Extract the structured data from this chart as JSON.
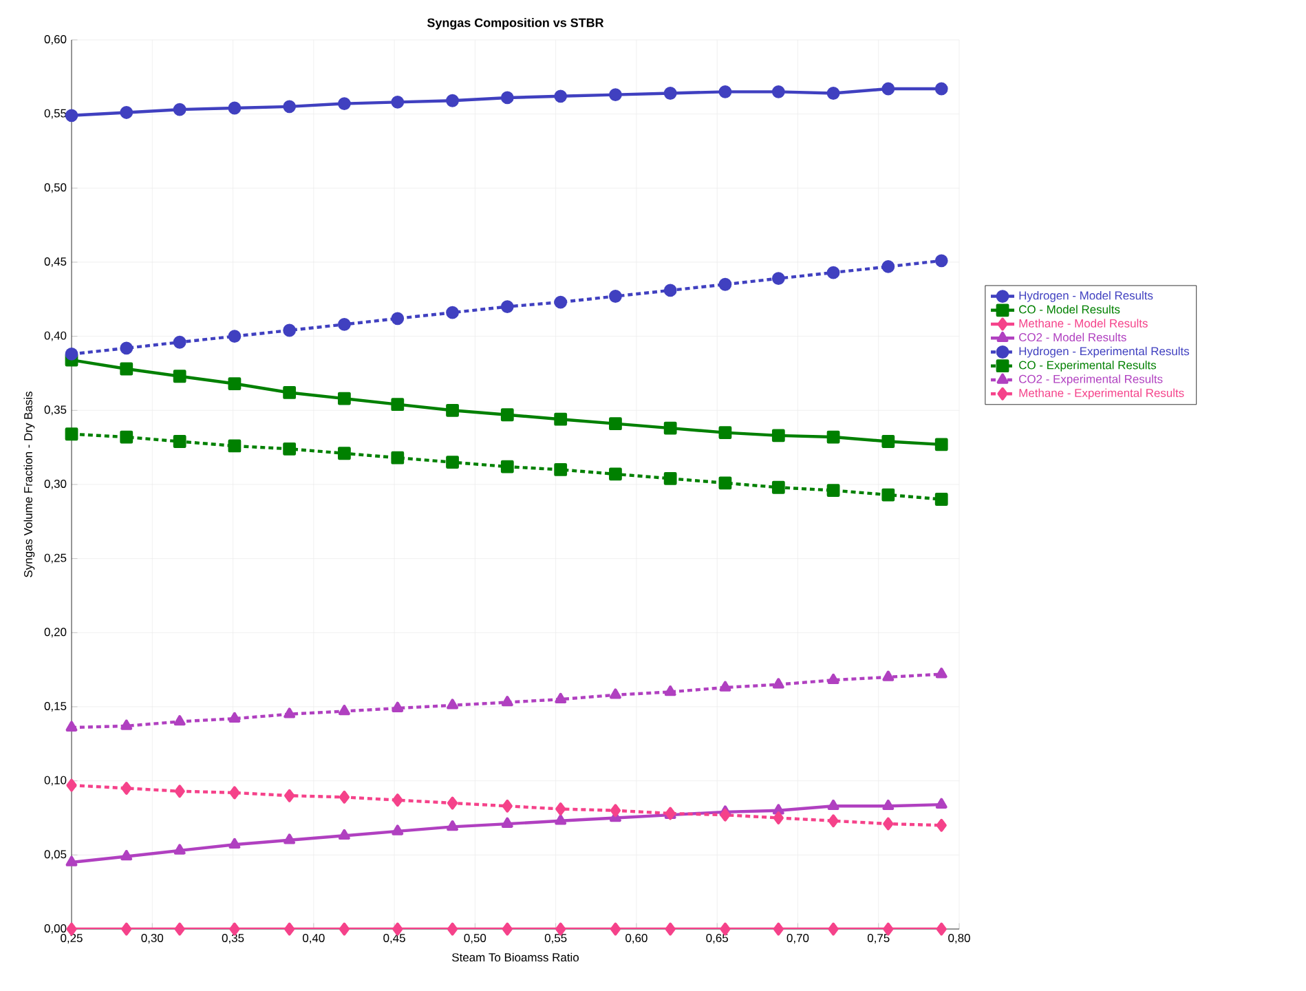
{
  "chart_data": {
    "type": "line",
    "title": "Syngas Composition vs STBR",
    "xlabel": "Steam To Bioamss Ratio",
    "ylabel": "Syngas Volume Fraction - Dry Basis",
    "x": [
      0.25,
      0.284,
      0.317,
      0.351,
      0.385,
      0.419,
      0.452,
      0.486,
      0.52,
      0.553,
      0.587,
      0.621,
      0.655,
      0.688,
      0.722,
      0.756,
      0.789
    ],
    "series": [
      {
        "name": "Hydrogen - Model Results",
        "color": "#4040c0",
        "marker": "circle",
        "line_style": "solid",
        "values": [
          0.549,
          0.551,
          0.553,
          0.554,
          0.555,
          0.557,
          0.558,
          0.559,
          0.561,
          0.562,
          0.563,
          0.564,
          0.565,
          0.565,
          0.564,
          0.567,
          0.567
        ]
      },
      {
        "name": "CO - Model Results",
        "color": "#008000",
        "marker": "square",
        "line_style": "solid",
        "values": [
          0.384,
          0.378,
          0.373,
          0.368,
          0.362,
          0.358,
          0.354,
          0.35,
          0.347,
          0.344,
          0.341,
          0.338,
          0.335,
          0.333,
          0.332,
          0.329,
          0.327
        ]
      },
      {
        "name": "Methane - Model Results",
        "color": "#f5428a",
        "marker": "diamond",
        "line_style": "solid",
        "values": [
          0,
          0,
          0,
          0,
          0,
          0,
          0,
          0,
          0,
          0,
          0,
          0,
          0,
          0,
          0,
          0,
          0
        ]
      },
      {
        "name": "CO2 - Model Results",
        "color": "#b040c0",
        "marker": "triangle",
        "line_style": "solid",
        "values": [
          0.045,
          0.049,
          0.053,
          0.057,
          0.06,
          0.063,
          0.066,
          0.069,
          0.071,
          0.073,
          0.075,
          0.077,
          0.079,
          0.08,
          0.083,
          0.083,
          0.084
        ]
      },
      {
        "name": "Hydrogen - Experimental Results",
        "color": "#4040c0",
        "marker": "circle",
        "line_style": "dotted",
        "values": [
          0.388,
          0.392,
          0.396,
          0.4,
          0.404,
          0.408,
          0.412,
          0.416,
          0.42,
          0.423,
          0.427,
          0.431,
          0.435,
          0.439,
          0.443,
          0.447,
          0.451
        ]
      },
      {
        "name": "CO - Experimental Results",
        "color": "#008000",
        "marker": "square",
        "line_style": "dotted",
        "values": [
          0.334,
          0.332,
          0.329,
          0.326,
          0.324,
          0.321,
          0.318,
          0.315,
          0.312,
          0.31,
          0.307,
          0.304,
          0.301,
          0.298,
          0.296,
          0.293,
          0.29
        ]
      },
      {
        "name": "CO2 - Experimental Results",
        "color": "#b040c0",
        "marker": "triangle",
        "line_style": "dotted",
        "values": [
          0.136,
          0.137,
          0.14,
          0.142,
          0.145,
          0.147,
          0.149,
          0.151,
          0.153,
          0.155,
          0.158,
          0.16,
          0.163,
          0.165,
          0.168,
          0.17,
          0.172
        ]
      },
      {
        "name": "Methane - Experimental Results",
        "color": "#f5428a",
        "marker": "diamond",
        "line_style": "dotted",
        "values": [
          0.097,
          0.095,
          0.093,
          0.092,
          0.09,
          0.089,
          0.087,
          0.085,
          0.083,
          0.081,
          0.08,
          0.078,
          0.077,
          0.075,
          0.073,
          0.071,
          0.07
        ]
      }
    ],
    "xlim": [
      0.25,
      0.8
    ],
    "ylim": [
      0,
      0.6
    ],
    "xticks": [
      {
        "value": 0.25,
        "label": "0,25"
      },
      {
        "value": 0.3,
        "label": "0,30"
      },
      {
        "value": 0.35,
        "label": "0,35"
      },
      {
        "value": 0.4,
        "label": "0,40"
      },
      {
        "value": 0.45,
        "label": "0,45"
      },
      {
        "value": 0.5,
        "label": "0,50"
      },
      {
        "value": 0.55,
        "label": "0,55"
      },
      {
        "value": 0.6,
        "label": "0,60"
      },
      {
        "value": 0.65,
        "label": "0,65"
      },
      {
        "value": 0.7,
        "label": "0,70"
      },
      {
        "value": 0.75,
        "label": "0,75"
      },
      {
        "value": 0.8,
        "label": "0,80"
      }
    ],
    "yticks": [
      {
        "value": 0,
        "label": "0,00"
      },
      {
        "value": 0.05,
        "label": "0,05"
      },
      {
        "value": 0.1,
        "label": "0,10"
      },
      {
        "value": 0.15,
        "label": "0,15"
      },
      {
        "value": 0.2,
        "label": "0,20"
      },
      {
        "value": 0.25,
        "label": "0,25"
      },
      {
        "value": 0.3,
        "label": "0,30"
      },
      {
        "value": 0.35,
        "label": "0,35"
      },
      {
        "value": 0.4,
        "label": "0,40"
      },
      {
        "value": 0.45,
        "label": "0,45"
      },
      {
        "value": 0.5,
        "label": "0,50"
      },
      {
        "value": 0.55,
        "label": "0,55"
      },
      {
        "value": 0.6,
        "label": "0,60"
      }
    ],
    "grid": true,
    "legend": "right"
  }
}
